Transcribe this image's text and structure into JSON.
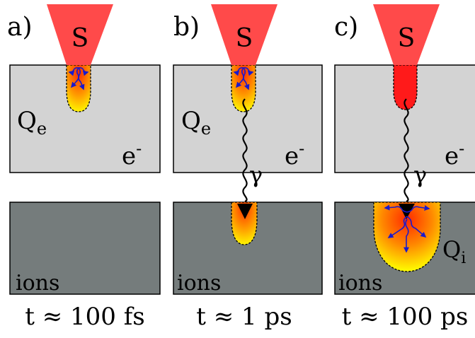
{
  "panels": [
    {
      "label": "a)",
      "tip_text": "S",
      "energy_label": "Q",
      "energy_sub": "e",
      "electron_label": "e",
      "electron_sup": "-",
      "ions_label": "ions",
      "time_label": "t ≈ 100 fs"
    },
    {
      "label": "b)",
      "tip_text": "S",
      "energy_label": "Q",
      "energy_sub": "e",
      "electron_label": "e",
      "electron_sup": "-",
      "photon_label": "γ",
      "ions_label": "ions",
      "time_label": "t ≈ 1 ps"
    },
    {
      "label": "c)",
      "tip_text": "S",
      "electron_label": "e",
      "electron_sup": "-",
      "photon_label": "γ",
      "ions_energy_label": "Q",
      "ions_energy_sub": "i",
      "ions_label": "ions",
      "time_label": "t ≈ 100 ps"
    }
  ],
  "colors": {
    "tip": "#ff4a4a",
    "electron_block": "#d3d3d3",
    "ion_block": "#757c7c",
    "hot_core": "#ff2a00",
    "hot_mid": "#ff9900",
    "hot_edge": "#ffff00",
    "arrow": "#1a1acc"
  }
}
